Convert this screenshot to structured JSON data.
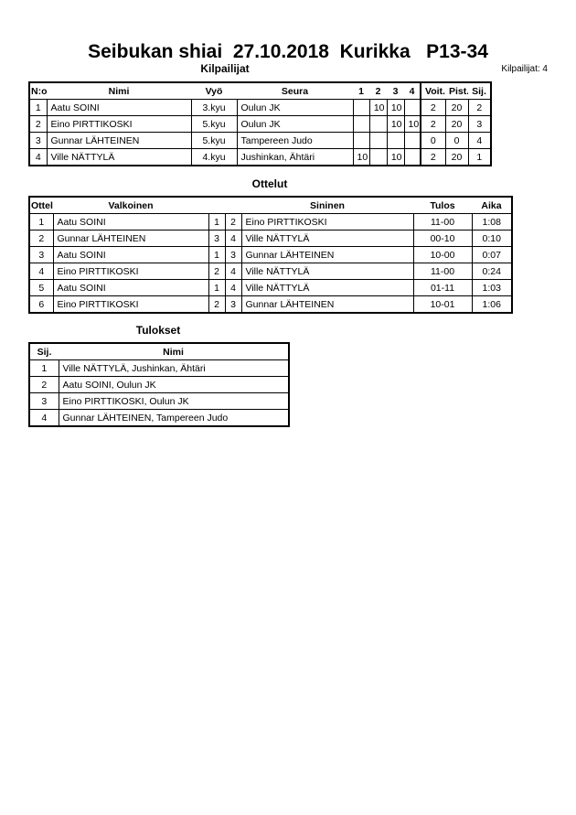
{
  "title": "Seibukan shiai  27.10.2018  Kurikka   P13-34",
  "competitors": {
    "heading": "Kilpailijat",
    "count_label": "Kilpailijat: 4",
    "headers": [
      "N:o",
      "Nimi",
      "Vyö",
      "Seura",
      "1",
      "2",
      "3",
      "4",
      "Voit.",
      "Pist.",
      "Sij."
    ],
    "rows": [
      [
        "1",
        "Aatu SOINI",
        "3.kyu",
        "Oulun JK",
        "",
        "10",
        "10",
        "",
        "2",
        "20",
        "2"
      ],
      [
        "2",
        "Eino PIRTTIKOSKI",
        "5.kyu",
        "Oulun JK",
        "",
        "",
        "10",
        "10",
        "2",
        "20",
        "3"
      ],
      [
        "3",
        "Gunnar LÄHTEINEN",
        "5.kyu",
        "Tampereen Judo",
        "",
        "",
        "",
        "",
        "0",
        "0",
        "4"
      ],
      [
        "4",
        "Ville NÄTTYLÄ",
        "4.kyu",
        "Jushinkan, Ähtäri",
        "10",
        "",
        "10",
        "",
        "2",
        "20",
        "1"
      ]
    ]
  },
  "matches": {
    "heading": "Ottelut",
    "headers": [
      "Ottelu",
      "Valkoinen",
      "",
      "",
      "Sininen",
      "Tulos",
      "Aika"
    ],
    "rows": [
      [
        "1",
        "Aatu SOINI",
        "1",
        "2",
        "Eino PIRTTIKOSKI",
        "11-00",
        "1:08"
      ],
      [
        "2",
        "Gunnar LÄHTEINEN",
        "3",
        "4",
        "Ville NÄTTYLÄ",
        "00-10",
        "0:10"
      ],
      [
        "3",
        "Aatu SOINI",
        "1",
        "3",
        "Gunnar LÄHTEINEN",
        "10-00",
        "0:07"
      ],
      [
        "4",
        "Eino PIRTTIKOSKI",
        "2",
        "4",
        "Ville NÄTTYLÄ",
        "11-00",
        "0:24"
      ],
      [
        "5",
        "Aatu SOINI",
        "1",
        "4",
        "Ville NÄTTYLÄ",
        "01-11",
        "1:03"
      ],
      [
        "6",
        "Eino PIRTTIKOSKI",
        "2",
        "3",
        "Gunnar LÄHTEINEN",
        "10-01",
        "1:06"
      ]
    ]
  },
  "results": {
    "heading": "Tulokset",
    "headers": [
      "Sij.",
      "Nimi"
    ],
    "rows": [
      [
        "1",
        "Ville NÄTTYLÄ, Jushinkan, Ähtäri"
      ],
      [
        "2",
        "Aatu SOINI, Oulun JK"
      ],
      [
        "3",
        "Eino PIRTTIKOSKI, Oulun JK"
      ],
      [
        "4",
        "Gunnar LÄHTEINEN, Tampereen Judo"
      ]
    ]
  }
}
